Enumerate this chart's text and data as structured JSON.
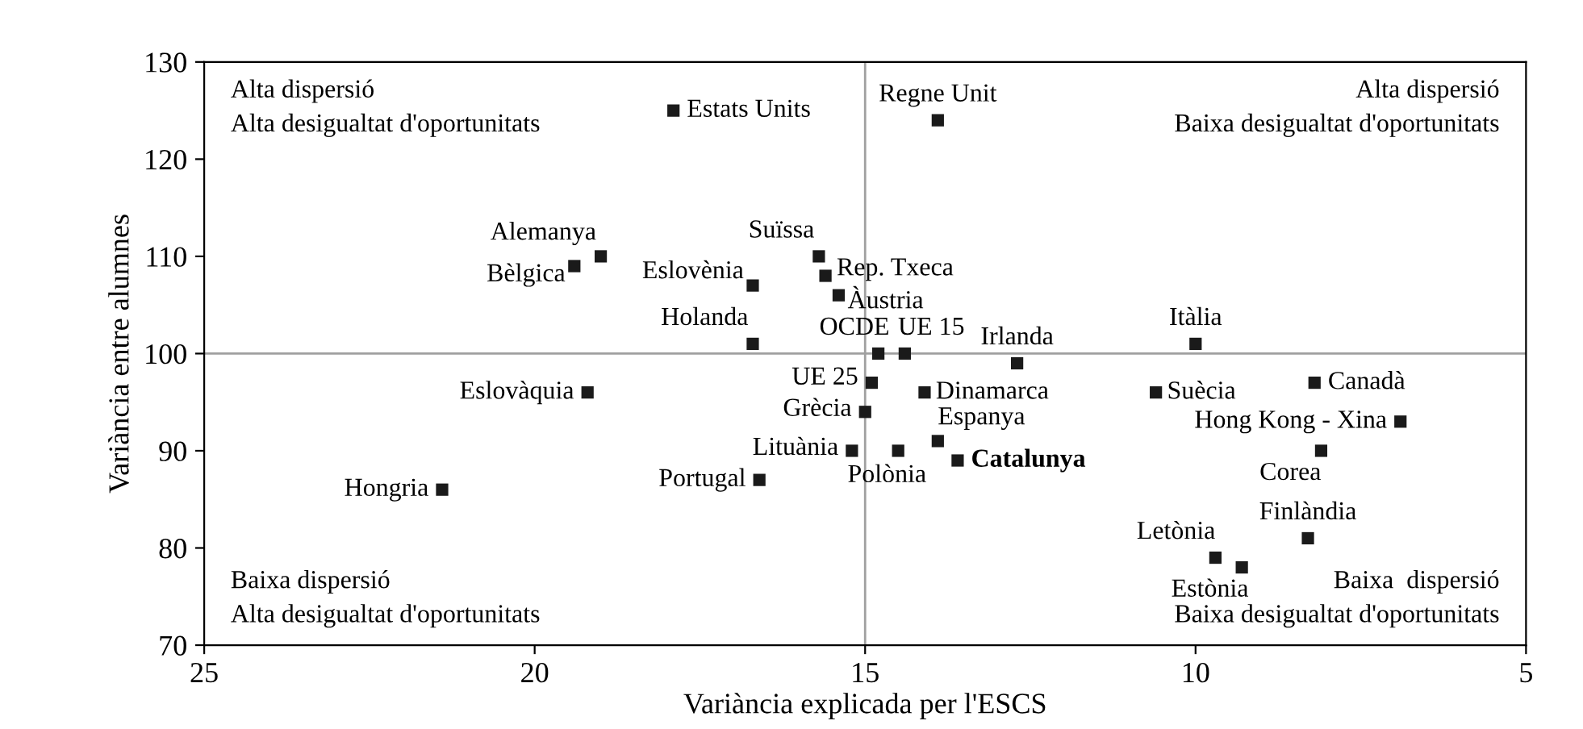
{
  "chart_data": {
    "type": "scatter",
    "xlabel": "Variància explicada per l'ESCS",
    "ylabel": "Variància entre alumnes",
    "xlim": [
      25,
      5
    ],
    "xticks": [
      25,
      20,
      15,
      10,
      5
    ],
    "ylim": [
      70,
      130
    ],
    "yticks": [
      70,
      80,
      90,
      100,
      110,
      120,
      130
    ],
    "grid": false,
    "marker": "square",
    "series": [
      {
        "color": "#1a1a1a",
        "x": [
          17.9,
          13.9,
          19.0,
          19.4,
          16.7,
          16.7,
          15.7,
          15.6,
          15.4,
          14.8,
          14.4,
          14.9,
          15.0,
          15.2,
          14.5,
          13.9,
          13.6,
          14.1,
          12.7,
          10.0,
          10.6,
          8.2,
          6.9,
          8.1,
          8.3,
          9.7,
          9.3,
          19.2,
          21.4,
          16.6
        ],
        "values": [
          125,
          124,
          110,
          109,
          107,
          101,
          110,
          108,
          106,
          100,
          100,
          97,
          94,
          90,
          90,
          91,
          89,
          96,
          99,
          101,
          96,
          97,
          93,
          90,
          81,
          79,
          78,
          96,
          86,
          87
        ]
      }
    ],
    "ref_lines": [
      {
        "axis": "x",
        "value": 15,
        "color": "#a0a0a0"
      },
      {
        "axis": "y",
        "value": 100,
        "color": "#a0a0a0"
      }
    ],
    "annotations": [
      {
        "text": "Estats Units",
        "x": 17.9,
        "y": 125
      },
      {
        "text": "Regne Unit",
        "x": 13.9,
        "y": 124
      },
      {
        "text": "Alemanya",
        "x": 19.0,
        "y": 110
      },
      {
        "text": "Bèlgica",
        "x": 19.4,
        "y": 109
      },
      {
        "text": "Eslovènia",
        "x": 16.7,
        "y": 107
      },
      {
        "text": "Holanda",
        "x": 16.7,
        "y": 101
      },
      {
        "text": "Suïssa",
        "x": 15.7,
        "y": 110
      },
      {
        "text": "Rep. Txeca",
        "x": 15.6,
        "y": 108
      },
      {
        "text": "Àustria",
        "x": 15.4,
        "y": 106
      },
      {
        "text": "OCDE",
        "x": 14.8,
        "y": 100
      },
      {
        "text": "UE 15",
        "x": 14.4,
        "y": 100
      },
      {
        "text": "UE 25",
        "x": 14.9,
        "y": 97
      },
      {
        "text": "Grècia",
        "x": 15.0,
        "y": 94
      },
      {
        "text": "Lituània",
        "x": 15.2,
        "y": 90
      },
      {
        "text": "Polònia",
        "x": 14.5,
        "y": 90
      },
      {
        "text": "Espanya",
        "x": 13.9,
        "y": 91
      },
      {
        "text": "Catalunya",
        "x": 13.6,
        "y": 89
      },
      {
        "text": "Dinamarca",
        "x": 14.1,
        "y": 96
      },
      {
        "text": "Irlanda",
        "x": 12.7,
        "y": 99
      },
      {
        "text": "Itàlia",
        "x": 10.0,
        "y": 101
      },
      {
        "text": "Suècia",
        "x": 10.6,
        "y": 96
      },
      {
        "text": "Canadà",
        "x": 8.2,
        "y": 97
      },
      {
        "text": "Hong Kong - Xina",
        "x": 6.9,
        "y": 93
      },
      {
        "text": "Corea",
        "x": 8.1,
        "y": 90
      },
      {
        "text": "Finlàndia",
        "x": 8.3,
        "y": 81
      },
      {
        "text": "Letònia",
        "x": 9.7,
        "y": 79
      },
      {
        "text": "Estònia",
        "x": 9.3,
        "y": 78
      },
      {
        "text": "Eslovàquia",
        "x": 19.2,
        "y": 96
      },
      {
        "text": "Hongria",
        "x": 21.4,
        "y": 86
      },
      {
        "text": "Portugal",
        "x": 16.6,
        "y": 87
      },
      "Alta dispersió\nAlta desigualtat d'oportunitats",
      "Alta dispersió\nBaixa desigualtat d'oportunitats",
      "Baixa dispersió\nAlta desigualtat d'oportunitats",
      "Baixa  dispersió\nBaixa desigualtat d'oportunitats"
    ]
  }
}
